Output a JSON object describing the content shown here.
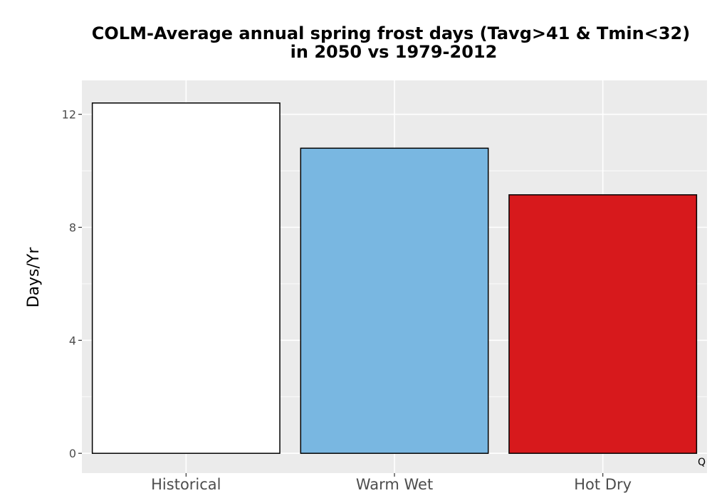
{
  "chart_data": {
    "type": "bar",
    "title_lines": [
      "COLM-Average annual spring frost days (Tavg>41 & Tmin<32)",
      "in 2050 vs 1979-2012"
    ],
    "xlabel": "",
    "ylabel": "Days/Yr",
    "categories": [
      "Historical",
      "Warm Wet",
      "Hot Dry"
    ],
    "values": [
      12.4,
      10.8,
      9.15
    ],
    "colors": [
      "#ffffff",
      "#79b7e1",
      "#d7191c"
    ],
    "bar_outline": "#000000",
    "ylim": [
      -0.7,
      13.2
    ],
    "yticks": [
      0,
      4,
      8,
      12
    ],
    "ytick_labels": [
      "0",
      "4",
      "8",
      "12"
    ],
    "grid": true,
    "panel_background": "#ebebeb",
    "corner_mark": "Q"
  }
}
